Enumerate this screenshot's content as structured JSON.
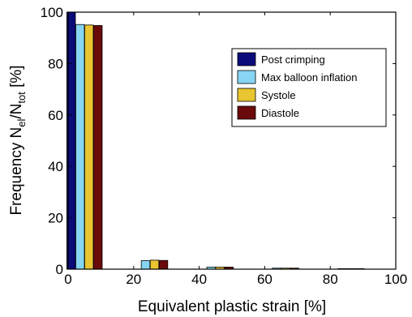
{
  "chart_data": {
    "type": "bar",
    "x": [
      5,
      25,
      45,
      65,
      85
    ],
    "series": [
      {
        "name": "Post crimping",
        "values": [
          100,
          0,
          0,
          0,
          0
        ],
        "color": "#0b0b7a"
      },
      {
        "name": "Max balloon inflation",
        "values": [
          95.2,
          3.3,
          0.8,
          0.4,
          0.2
        ],
        "color": "#87d5f2"
      },
      {
        "name": "Systole",
        "values": [
          95.0,
          3.5,
          0.8,
          0.4,
          0.2
        ],
        "color": "#e8c531"
      },
      {
        "name": "Diastole",
        "values": [
          94.8,
          3.4,
          0.8,
          0.4,
          0.2
        ],
        "color": "#6b0a0a"
      }
    ],
    "xlabel": "Equivalent plastic strain [%]",
    "ylabel_parts": [
      "Frequency N",
      "el",
      "/N",
      "tot",
      " [%]"
    ],
    "xlim": [
      0,
      100
    ],
    "ylim": [
      0,
      100
    ],
    "xticks": [
      0,
      20,
      40,
      60,
      80,
      100
    ],
    "yticks": [
      0,
      20,
      40,
      60,
      80,
      100
    ],
    "grid": false,
    "legend_position": "top-right"
  }
}
